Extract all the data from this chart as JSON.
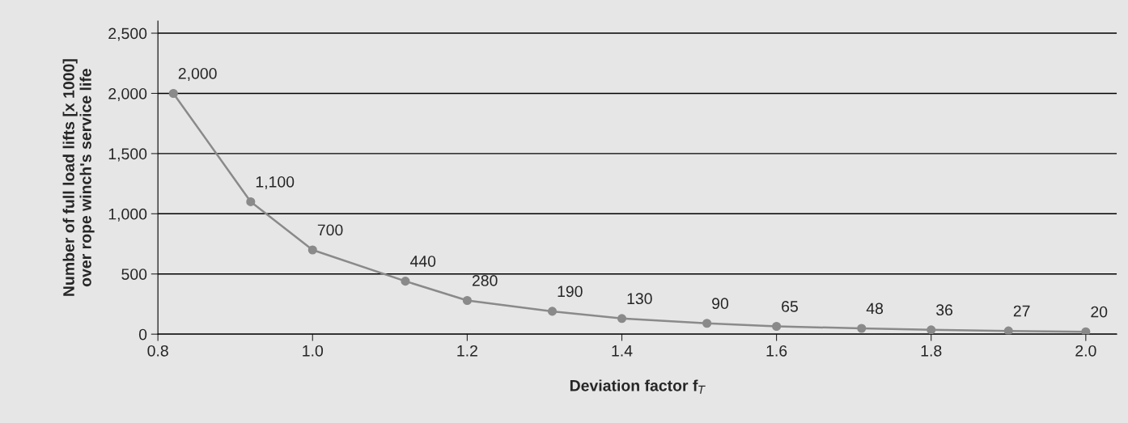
{
  "chart_data": {
    "type": "line",
    "xlabel": "Deviation factor f$_{T}$",
    "ylabel": "Number of full load lifts [x 1000]\nover rope winch's service life",
    "x": [
      0.82,
      0.92,
      1.0,
      1.12,
      1.2,
      1.31,
      1.4,
      1.51,
      1.6,
      1.71,
      1.8,
      1.9,
      2.0
    ],
    "series": [
      {
        "color": "#8a8a8a",
        "values": [
          2000,
          1100,
          700,
          440,
          280,
          190,
          130,
          90,
          65,
          48,
          36,
          27,
          20
        ],
        "value_labels": [
          "2,000",
          "1,100",
          "700",
          "440",
          "280",
          "190",
          "130",
          "90",
          "65",
          "48",
          "36",
          "27",
          "20"
        ]
      }
    ],
    "marker": "circle",
    "line_style": "solid",
    "grid": "y",
    "xlim": [
      0.8,
      2.04
    ],
    "xticks": [
      {
        "value": 0.8,
        "label": "0.8"
      },
      {
        "value": 1.0,
        "label": "1.0"
      },
      {
        "value": 1.2,
        "label": "1.2"
      },
      {
        "value": 1.4,
        "label": "1.4"
      },
      {
        "value": 1.6,
        "label": "1.6"
      },
      {
        "value": 1.8,
        "label": "1.8"
      },
      {
        "value": 2.0,
        "label": "2.0"
      }
    ],
    "ylim": [
      0,
      2600
    ],
    "yticks": [
      0,
      500,
      {
        "value": 1000,
        "label": "1,000"
      },
      {
        "value": 1500,
        "label": "1,500"
      },
      {
        "value": 2000,
        "label": "2,000"
      },
      {
        "value": 2500,
        "label": "2,500"
      }
    ]
  }
}
